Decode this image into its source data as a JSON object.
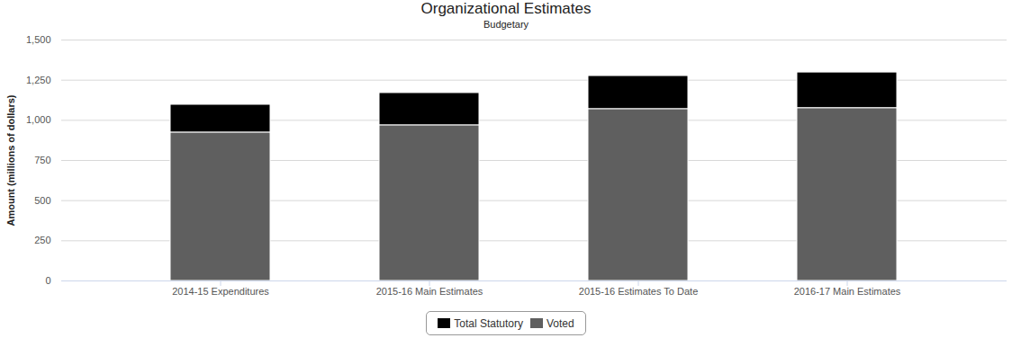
{
  "chart_data": {
    "type": "bar",
    "title": "Organizational Estimates",
    "subtitle": "Budgetary",
    "y_label": "Amount (millions of dollars)",
    "categories": [
      "2014-15 Expenditures",
      "2015-16 Main Estimates",
      "2015-16 Estimates To Date",
      "2016-17 Main Estimates"
    ],
    "series": [
      {
        "name": "Total Statutory",
        "color": "#000000",
        "values": [
          174,
          202,
          207,
          223
        ]
      },
      {
        "name": "Voted",
        "color": "#5f5f5f",
        "values": [
          923,
          968,
          1069,
          1075
        ]
      }
    ],
    "stacked": true,
    "ylim": [
      0,
      1500
    ],
    "yticks": [
      0,
      250,
      500,
      750,
      {
        "value": 1000,
        "label": "1,000"
      },
      {
        "value": 1250,
        "label": "1,250"
      },
      {
        "value": 1500,
        "label": "1,500"
      }
    ],
    "grid": true,
    "legend": "bottom"
  }
}
